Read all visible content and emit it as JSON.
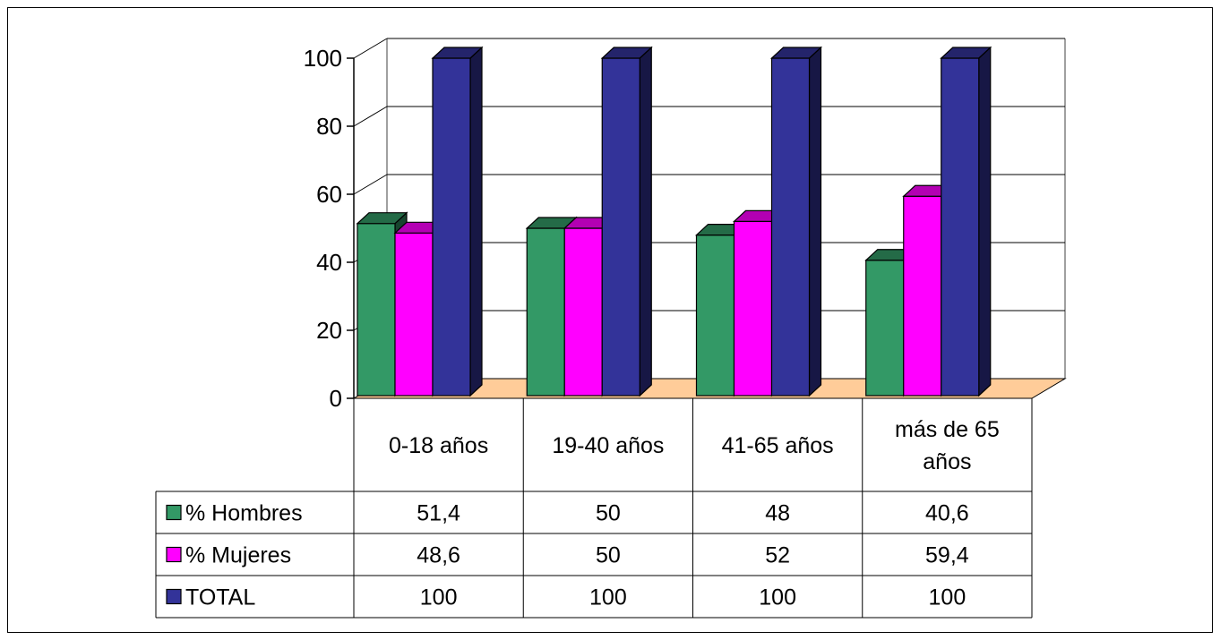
{
  "chart_data": {
    "type": "bar",
    "style": "3d-clustered-column-with-data-table",
    "title": "",
    "xlabel": "",
    "ylabel": "",
    "ylim": [
      0,
      100
    ],
    "yticks": [
      0,
      20,
      40,
      60,
      80,
      100
    ],
    "grid": true,
    "legend": "data-table",
    "categories": [
      "0-18 años",
      "19-40 años",
      "41-65 años",
      "más de 65 años"
    ],
    "series": [
      {
        "name": "% Hombres",
        "values": [
          51.4,
          50,
          48,
          40.6
        ],
        "labels": [
          "51,4",
          "50",
          "48",
          "40,6"
        ],
        "color": "#339966"
      },
      {
        "name": "% Mujeres",
        "values": [
          48.6,
          50,
          52,
          59.4
        ],
        "labels": [
          "48,6",
          "50",
          "52",
          "59,4"
        ],
        "color": "#ff00ff"
      },
      {
        "name": "TOTAL",
        "values": [
          100,
          100,
          100,
          100
        ],
        "labels": [
          "100",
          "100",
          "100",
          "100"
        ],
        "color": "#333399"
      }
    ],
    "floor_color": "#ffcc99"
  }
}
